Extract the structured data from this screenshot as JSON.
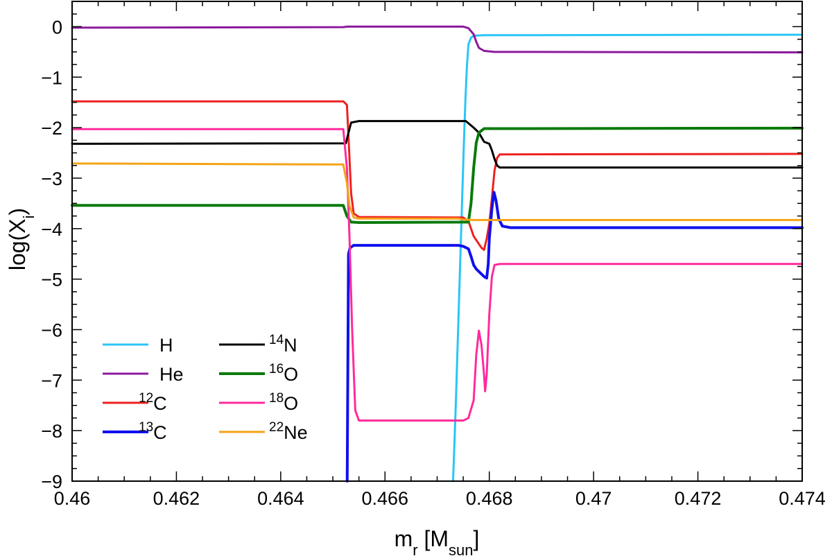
{
  "chart_data": {
    "type": "line",
    "xlabel": {
      "main": "m",
      "sub": "r",
      "bracket_open": " [M",
      "unit_sub": "sun",
      "bracket_close": "]"
    },
    "ylabel": {
      "main": "log(X",
      "sub": "i",
      "close": ")"
    },
    "xlim": [
      0.46,
      0.474
    ],
    "ylim": [
      -9,
      0.5
    ],
    "xticks": [
      0.46,
      0.462,
      0.464,
      0.466,
      0.468,
      0.47,
      0.472,
      0.474
    ],
    "xtick_labels": [
      "0.46",
      "0.462",
      "0.464",
      "0.466",
      "0.468",
      "0.47",
      "0.472",
      "0.474"
    ],
    "yticks": [
      0,
      -1,
      -2,
      -3,
      -4,
      -5,
      -6,
      -7,
      -8,
      -9
    ],
    "ytick_labels": [
      "0",
      "−1",
      "−2",
      "−3",
      "−4",
      "−5",
      "−6",
      "−7",
      "−8",
      "−9"
    ],
    "grid": false,
    "legend_position": "bottom-left",
    "series": [
      {
        "id": "h",
        "name": "H",
        "sup": "",
        "color": "#29c5f6",
        "width": 3,
        "points": [
          [
            0.467305,
            -9.0
          ],
          [
            0.46733,
            -8.3
          ],
          [
            0.46736,
            -7.4
          ],
          [
            0.46739,
            -6.4
          ],
          [
            0.46742,
            -5.4
          ],
          [
            0.46745,
            -4.4
          ],
          [
            0.46748,
            -3.4
          ],
          [
            0.46751,
            -2.4
          ],
          [
            0.46754,
            -1.5
          ],
          [
            0.46757,
            -0.8
          ],
          [
            0.4676,
            -0.35
          ],
          [
            0.46765,
            -0.22
          ],
          [
            0.4677,
            -0.18
          ],
          [
            0.4679,
            -0.17
          ],
          [
            0.474,
            -0.16
          ]
        ]
      },
      {
        "id": "he",
        "name": "He",
        "sup": "",
        "color": "#8b1a9c",
        "width": 3,
        "points": [
          [
            0.46,
            -0.02
          ],
          [
            0.4652,
            -0.01
          ],
          [
            0.46528,
            0.0
          ],
          [
            0.4675,
            0.0
          ],
          [
            0.4676,
            -0.03
          ],
          [
            0.4677,
            -0.15
          ],
          [
            0.46775,
            -0.3
          ],
          [
            0.4678,
            -0.42
          ],
          [
            0.4679,
            -0.48
          ],
          [
            0.4681,
            -0.5
          ],
          [
            0.474,
            -0.51
          ]
        ]
      },
      {
        "id": "c12",
        "name": "C",
        "sup": "12",
        "color": "#ee2020",
        "width": 3,
        "points": [
          [
            0.46,
            -1.48
          ],
          [
            0.4652,
            -1.48
          ],
          [
            0.46527,
            -1.55
          ],
          [
            0.46531,
            -2.4
          ],
          [
            0.46535,
            -3.3
          ],
          [
            0.4654,
            -3.7
          ],
          [
            0.4655,
            -3.77
          ],
          [
            0.4675,
            -3.78
          ],
          [
            0.4676,
            -3.85
          ],
          [
            0.4677,
            -4.15
          ],
          [
            0.46785,
            -4.38
          ],
          [
            0.4679,
            -4.42
          ],
          [
            0.46795,
            -4.2
          ],
          [
            0.468,
            -3.9
          ],
          [
            0.46805,
            -3.4
          ],
          [
            0.4681,
            -2.85
          ],
          [
            0.46815,
            -2.6
          ],
          [
            0.4682,
            -2.53
          ],
          [
            0.474,
            -2.52
          ]
        ]
      },
      {
        "id": "c13",
        "name": "C",
        "sup": "13",
        "color": "#1010ee",
        "width": 4,
        "points": [
          [
            0.465275,
            -9.0
          ],
          [
            0.4653,
            -4.5
          ],
          [
            0.46533,
            -4.38
          ],
          [
            0.4654,
            -4.33
          ],
          [
            0.4674,
            -4.33
          ],
          [
            0.4675,
            -4.35
          ],
          [
            0.4676,
            -4.4
          ],
          [
            0.46765,
            -4.55
          ],
          [
            0.4677,
            -4.72
          ],
          [
            0.46775,
            -4.8
          ],
          [
            0.4678,
            -4.85
          ],
          [
            0.4679,
            -4.95
          ],
          [
            0.46795,
            -4.98
          ],
          [
            0.46798,
            -4.7
          ],
          [
            0.468,
            -4.2
          ],
          [
            0.46805,
            -3.6
          ],
          [
            0.46809,
            -3.28
          ],
          [
            0.46813,
            -3.45
          ],
          [
            0.46818,
            -3.8
          ],
          [
            0.46825,
            -3.95
          ],
          [
            0.4684,
            -3.98
          ],
          [
            0.474,
            -3.98
          ]
        ]
      },
      {
        "id": "n14",
        "name": "N",
        "sup": "14",
        "color": "#000000",
        "width": 3,
        "points": [
          [
            0.46,
            -2.32
          ],
          [
            0.46525,
            -2.31
          ],
          [
            0.4653,
            -2.1
          ],
          [
            0.46535,
            -1.9
          ],
          [
            0.4655,
            -1.87
          ],
          [
            0.46755,
            -1.87
          ],
          [
            0.4677,
            -2.0
          ],
          [
            0.4678,
            -2.1
          ],
          [
            0.4679,
            -2.28
          ],
          [
            0.468,
            -2.32
          ],
          [
            0.46805,
            -2.45
          ],
          [
            0.4681,
            -2.62
          ],
          [
            0.46815,
            -2.75
          ],
          [
            0.4682,
            -2.79
          ],
          [
            0.474,
            -2.79
          ]
        ]
      },
      {
        "id": "o16",
        "name": "O",
        "sup": "16",
        "color": "#0a7a0a",
        "width": 4,
        "points": [
          [
            0.46,
            -3.54
          ],
          [
            0.4652,
            -3.54
          ],
          [
            0.46527,
            -3.75
          ],
          [
            0.46535,
            -3.87
          ],
          [
            0.4655,
            -3.88
          ],
          [
            0.4676,
            -3.87
          ],
          [
            0.46765,
            -3.5
          ],
          [
            0.4677,
            -2.8
          ],
          [
            0.46775,
            -2.3
          ],
          [
            0.4678,
            -2.1
          ],
          [
            0.4679,
            -2.02
          ],
          [
            0.474,
            -2.01
          ]
        ]
      },
      {
        "id": "o18",
        "name": "O",
        "sup": "18",
        "color": "#ff2a9c",
        "width": 3,
        "points": [
          [
            0.46,
            -2.03
          ],
          [
            0.4652,
            -2.03
          ],
          [
            0.46527,
            -2.8
          ],
          [
            0.46532,
            -4.2
          ],
          [
            0.46537,
            -6.0
          ],
          [
            0.46543,
            -7.6
          ],
          [
            0.4655,
            -7.8
          ],
          [
            0.4675,
            -7.8
          ],
          [
            0.4676,
            -7.75
          ],
          [
            0.4677,
            -7.4
          ],
          [
            0.46775,
            -6.5
          ],
          [
            0.4678,
            -6.02
          ],
          [
            0.46785,
            -6.3
          ],
          [
            0.4679,
            -6.9
          ],
          [
            0.46792,
            -7.22
          ],
          [
            0.46795,
            -6.9
          ],
          [
            0.468,
            -5.7
          ],
          [
            0.46805,
            -4.95
          ],
          [
            0.4681,
            -4.72
          ],
          [
            0.4682,
            -4.7
          ],
          [
            0.474,
            -4.7
          ]
        ]
      },
      {
        "id": "ne22",
        "name": "Ne",
        "sup": "22",
        "color": "#f5a316",
        "width": 3,
        "points": [
          [
            0.46,
            -2.71
          ],
          [
            0.4652,
            -2.73
          ],
          [
            0.46527,
            -3.1
          ],
          [
            0.46532,
            -3.55
          ],
          [
            0.4654,
            -3.78
          ],
          [
            0.4655,
            -3.8
          ],
          [
            0.4674,
            -3.8
          ],
          [
            0.4675,
            -3.82
          ],
          [
            0.4677,
            -3.83
          ],
          [
            0.474,
            -3.83
          ]
        ]
      }
    ]
  }
}
